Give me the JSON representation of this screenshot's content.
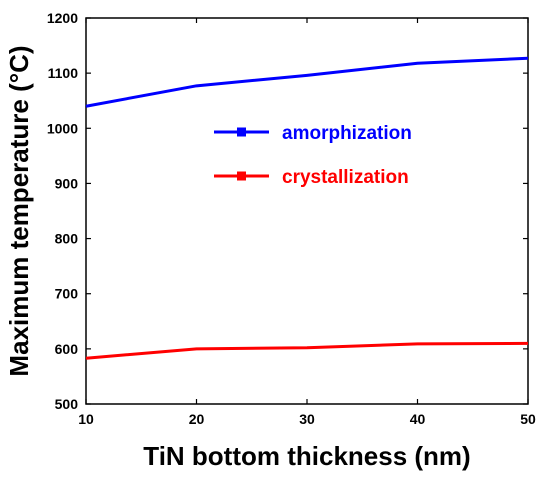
{
  "chart_data": {
    "type": "line",
    "x": [
      10,
      20,
      30,
      40,
      50
    ],
    "series": [
      {
        "name": "amorphization",
        "color": "#0000ff",
        "marker": "square",
        "values": [
          1040,
          1077,
          1096,
          1118,
          1127
        ]
      },
      {
        "name": "crystallization",
        "color": "#ff0000",
        "marker": "square",
        "values": [
          583,
          600,
          602,
          609,
          610
        ]
      }
    ],
    "xlabel": "TiN bottom thickness (nm)",
    "ylabel": "Maximum temperature (°C)",
    "xlim": [
      10,
      50
    ],
    "ylim": [
      500,
      1200
    ],
    "xticks": [
      10,
      20,
      30,
      40,
      50
    ],
    "yticks": [
      500,
      600,
      700,
      800,
      900,
      1000,
      1100,
      1200
    ],
    "grid": false,
    "legend_position": "upper-center"
  }
}
